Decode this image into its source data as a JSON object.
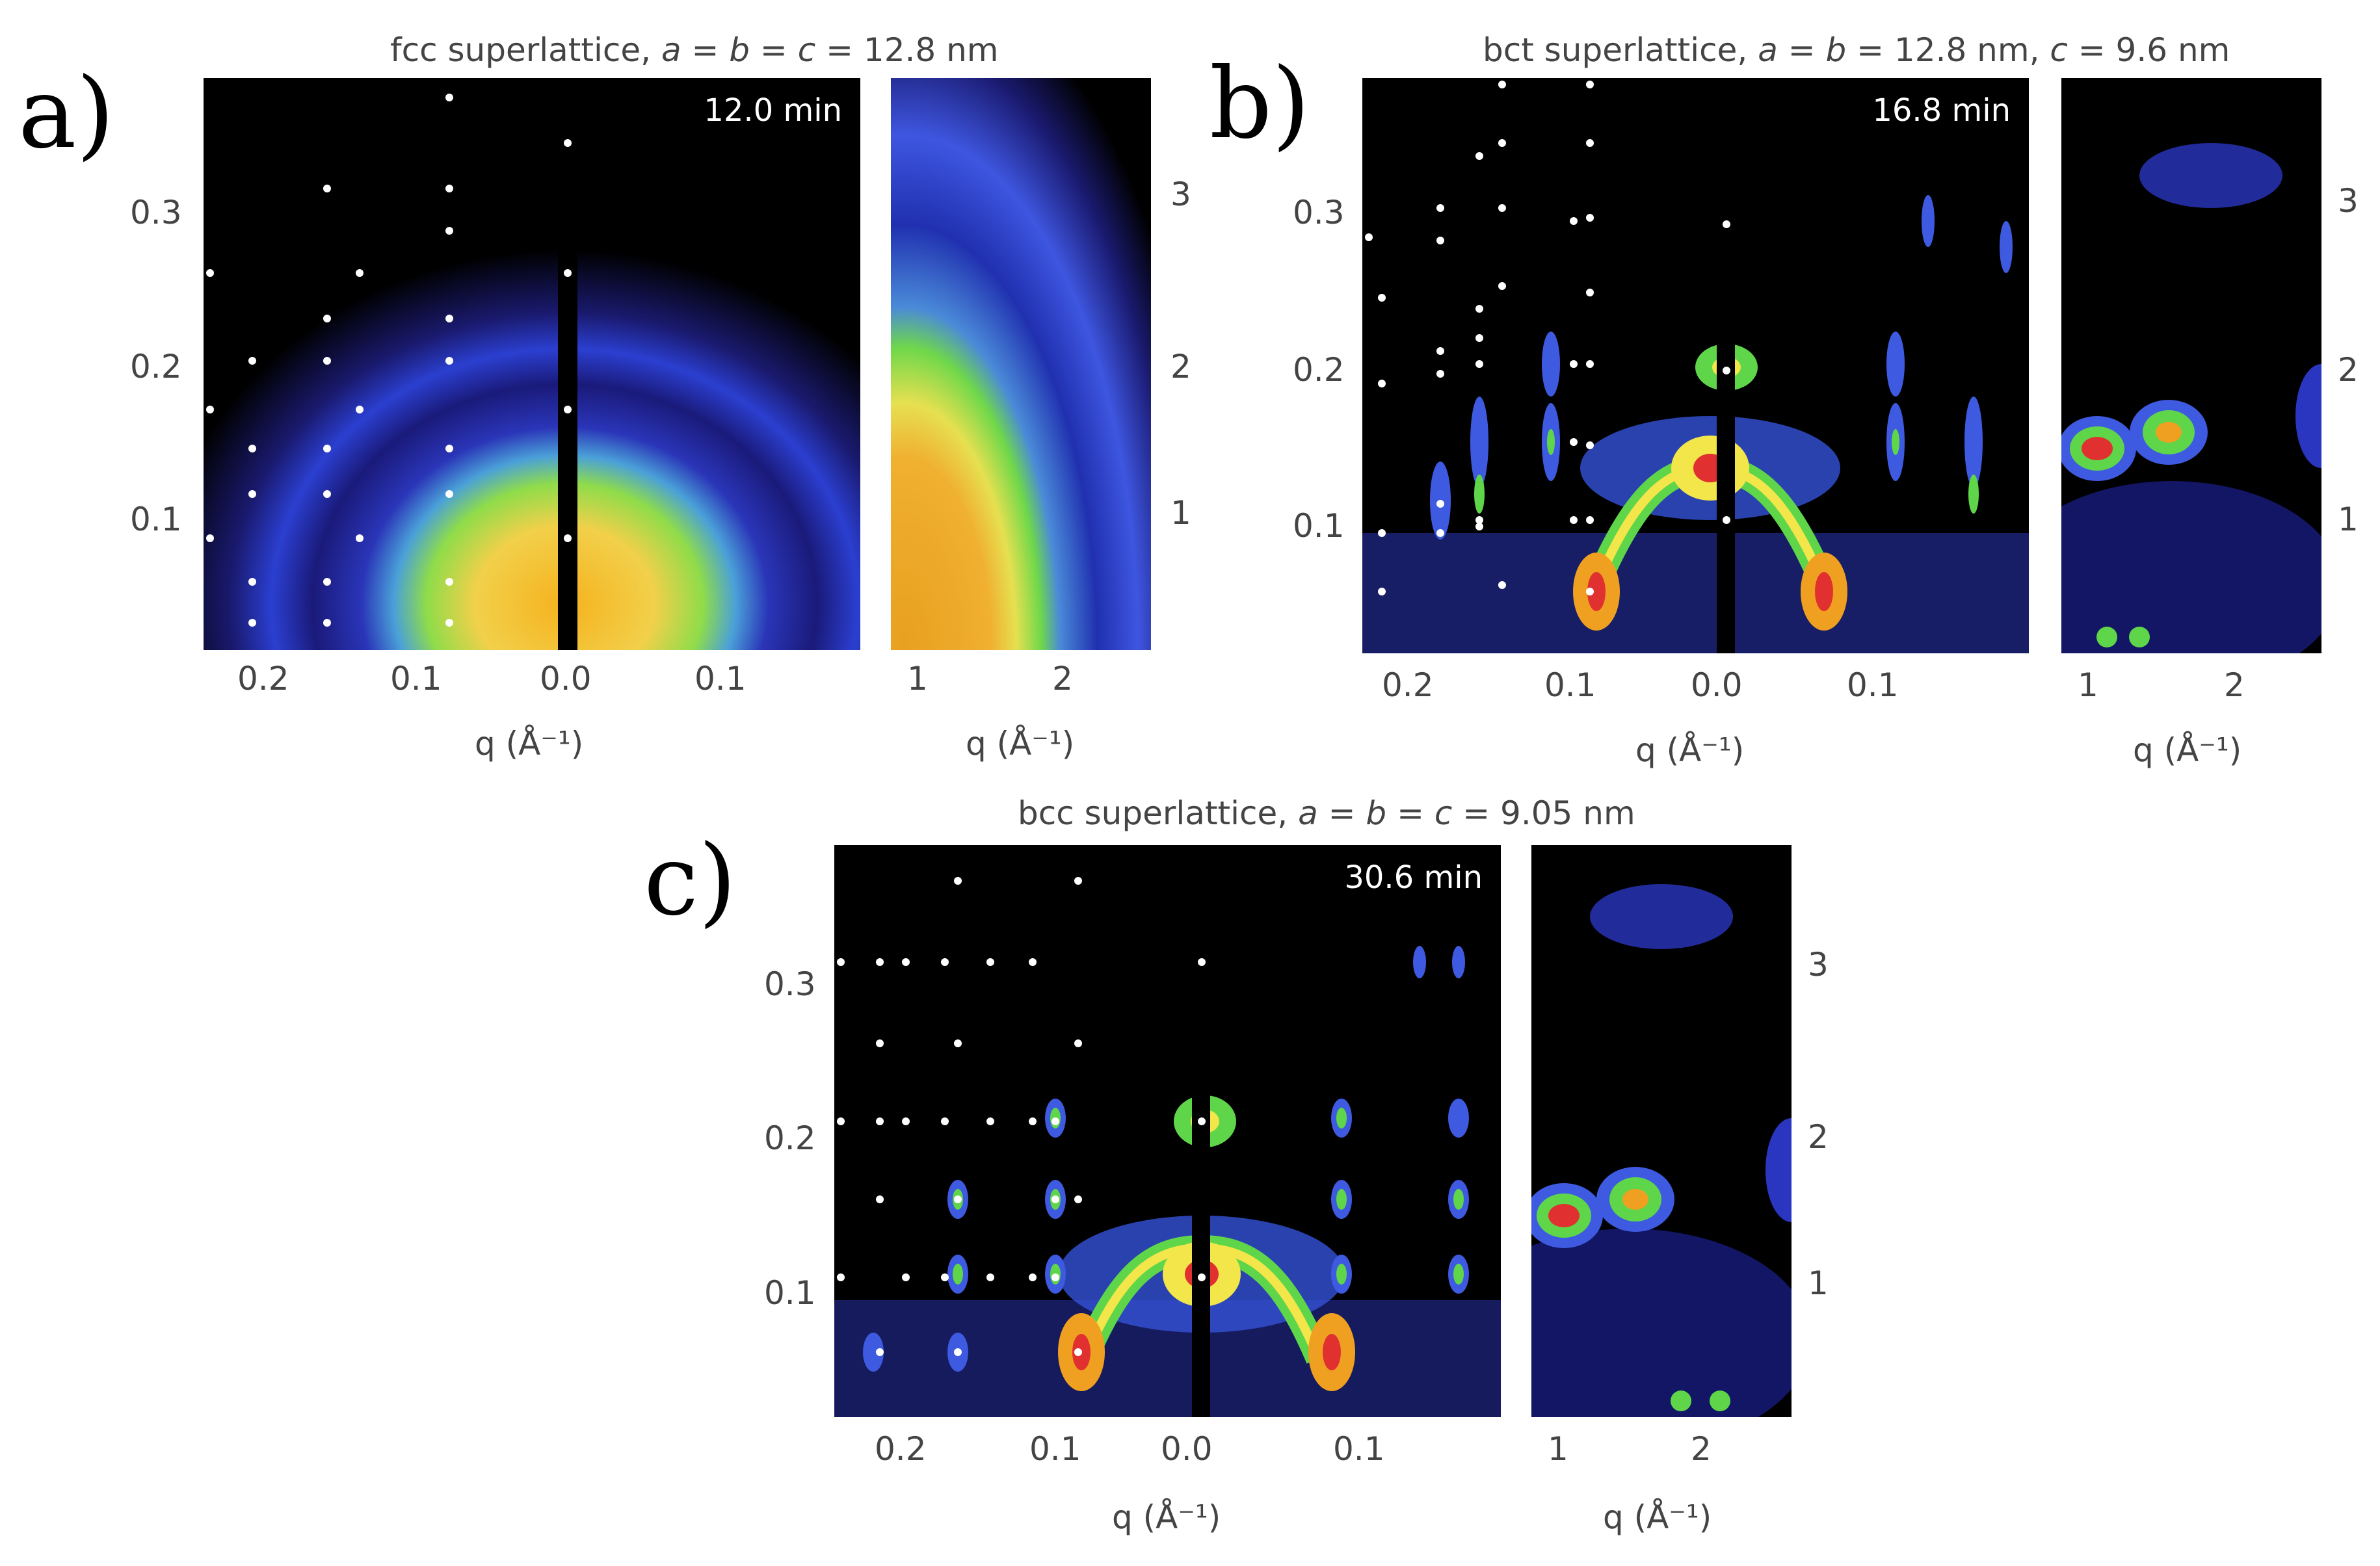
{
  "panels": [
    {
      "id": "a",
      "label": "a)",
      "title": "fcc superlattice, a = b = c = 12.8 nm",
      "time": "12.0 min",
      "left_yticks": [
        "0.3",
        "0.2",
        "0.1"
      ],
      "left_xticks": [
        "0.2",
        "0.1",
        "0.0",
        "0.1"
      ],
      "right_yticks": [
        "3",
        "2",
        "1"
      ],
      "right_xticks": [
        "1",
        "2"
      ],
      "xlabel_left": "q (Å⁻¹)",
      "xlabel_right": "q (Å⁻¹)",
      "pattern": "diffuse-rings"
    },
    {
      "id": "b",
      "label": "b)",
      "title": "bct superlattice, a = b = 12.8 nm, c = 9.6 nm",
      "time": "16.8 min",
      "left_yticks": [
        "0.3",
        "0.2",
        "0.1"
      ],
      "left_xticks": [
        "0.2",
        "0.1",
        "0.0",
        "0.1"
      ],
      "right_yticks": [
        "3",
        "2",
        "1"
      ],
      "right_xticks": [
        "1",
        "2"
      ],
      "xlabel_left": "q (Å⁻¹)",
      "xlabel_right": "q (Å⁻¹)",
      "pattern": "bragg-spots"
    },
    {
      "id": "c",
      "label": "c)",
      "title": "bcc superlattice, a = b = c = 9.05 nm",
      "time": "30.6 min",
      "left_yticks": [
        "0.3",
        "0.2",
        "0.1"
      ],
      "left_xticks": [
        "0.2",
        "0.1",
        "0.0",
        "0.1"
      ],
      "right_yticks": [
        "3",
        "2",
        "1"
      ],
      "right_xticks": [
        "1",
        "2"
      ],
      "xlabel_left": "q (Å⁻¹)",
      "xlabel_right": "q (Å⁻¹)",
      "pattern": "bragg-spots"
    }
  ],
  "colors": {
    "background": "#000000",
    "low": "#1a1a8c",
    "mid": "#3f56e0",
    "green": "#5fd64a",
    "yellow": "#f2e64a",
    "orange": "#f0a020",
    "red": "#e03030",
    "marker": "#ffffff"
  }
}
